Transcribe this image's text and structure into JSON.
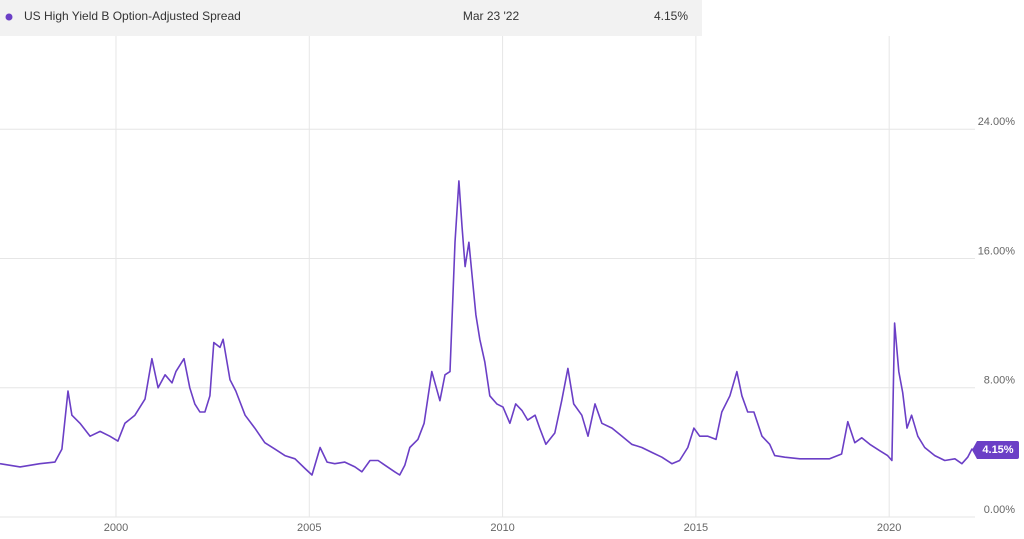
{
  "chart_data": {
    "type": "line",
    "legend": {
      "date": "Mar 23 '22",
      "value_label": "4.15%"
    },
    "x": [
      1997.0,
      1997.52,
      1998.03,
      1998.42,
      1998.6,
      1998.76,
      1998.86,
      1999.07,
      1999.33,
      1999.59,
      1999.84,
      2000.05,
      2000.23,
      2000.49,
      2000.75,
      2000.93,
      2001.09,
      2001.27,
      2001.45,
      2001.55,
      2001.76,
      2001.91,
      2002.04,
      2002.17,
      2002.3,
      2002.43,
      2002.53,
      2002.69,
      2002.77,
      2002.95,
      2003.1,
      2003.34,
      2003.59,
      2003.85,
      2004.11,
      2004.37,
      2004.63,
      2004.89,
      2005.07,
      2005.28,
      2005.46,
      2005.66,
      2005.92,
      2006.18,
      2006.36,
      2006.57,
      2006.78,
      2006.96,
      2007.21,
      2007.34,
      2007.47,
      2007.6,
      2007.81,
      2007.97,
      2008.17,
      2008.38,
      2008.51,
      2008.64,
      2008.77,
      2008.87,
      2008.95,
      2009.03,
      2009.13,
      2009.21,
      2009.31,
      2009.41,
      2009.54,
      2009.67,
      2009.85,
      2010.01,
      2010.19,
      2010.34,
      2010.5,
      2010.65,
      2010.84,
      2010.96,
      2011.12,
      2011.35,
      2011.53,
      2011.69,
      2011.84,
      2012.05,
      2012.21,
      2012.39,
      2012.57,
      2012.83,
      2013.09,
      2013.34,
      2013.6,
      2013.86,
      2014.12,
      2014.38,
      2014.58,
      2014.79,
      2014.95,
      2015.1,
      2015.31,
      2015.52,
      2015.67,
      2015.88,
      2016.06,
      2016.19,
      2016.34,
      2016.5,
      2016.71,
      2016.91,
      2017.04,
      2017.3,
      2017.69,
      2018.08,
      2018.46,
      2018.77,
      2018.93,
      2019.11,
      2019.29,
      2019.5,
      2019.76,
      2019.96,
      2020.07,
      2020.14,
      2020.25,
      2020.35,
      2020.46,
      2020.58,
      2020.74,
      2020.92,
      2021.18,
      2021.44,
      2021.7,
      2021.88,
      2022.03,
      2022.14,
      2022.22
    ],
    "series": [
      {
        "name": "US High Yield B Option-Adjusted Spread",
        "color": "#6b3fc6",
        "values": [
          3.3,
          3.1,
          3.3,
          3.4,
          4.2,
          7.8,
          6.3,
          5.8,
          5.0,
          5.3,
          5.0,
          4.7,
          5.8,
          6.3,
          7.3,
          9.8,
          8.0,
          8.8,
          8.3,
          9.0,
          9.8,
          8.0,
          7.0,
          6.5,
          6.5,
          7.5,
          10.8,
          10.5,
          11.0,
          8.5,
          7.8,
          6.3,
          5.5,
          4.6,
          4.2,
          3.8,
          3.6,
          3.0,
          2.6,
          4.3,
          3.4,
          3.3,
          3.4,
          3.1,
          2.8,
          3.5,
          3.5,
          3.2,
          2.8,
          2.6,
          3.2,
          4.3,
          4.8,
          5.8,
          9.0,
          7.2,
          8.8,
          9.0,
          17.0,
          20.8,
          18.0,
          15.5,
          17.0,
          15.0,
          12.5,
          11.0,
          9.6,
          7.5,
          7.0,
          6.8,
          5.8,
          7.0,
          6.6,
          6.0,
          6.3,
          5.5,
          4.5,
          5.2,
          7.2,
          9.2,
          7.0,
          6.3,
          5.0,
          7.0,
          5.8,
          5.5,
          5.0,
          4.5,
          4.3,
          4.0,
          3.7,
          3.3,
          3.5,
          4.3,
          5.5,
          5.0,
          5.0,
          4.8,
          6.5,
          7.5,
          9.0,
          7.5,
          6.5,
          6.5,
          5.0,
          4.5,
          3.8,
          3.7,
          3.6,
          3.6,
          3.6,
          3.9,
          5.9,
          4.6,
          4.9,
          4.5,
          4.1,
          3.8,
          3.5,
          12.0,
          9.0,
          7.7,
          5.5,
          6.3,
          5.0,
          4.3,
          3.8,
          3.5,
          3.6,
          3.3,
          3.7,
          4.2,
          4.15
        ]
      }
    ],
    "xlim": [
      1997,
      2022.22
    ],
    "xticks": [
      2000,
      2005,
      2010,
      2015,
      2020
    ],
    "ylim": [
      0,
      32
    ],
    "yticks": [
      {
        "value": 0,
        "label": "0.00%"
      },
      {
        "value": 8,
        "label": "8.00%"
      },
      {
        "value": 16,
        "label": "16.00%"
      },
      {
        "value": 24,
        "label": "24.00%"
      }
    ],
    "grid": true
  }
}
